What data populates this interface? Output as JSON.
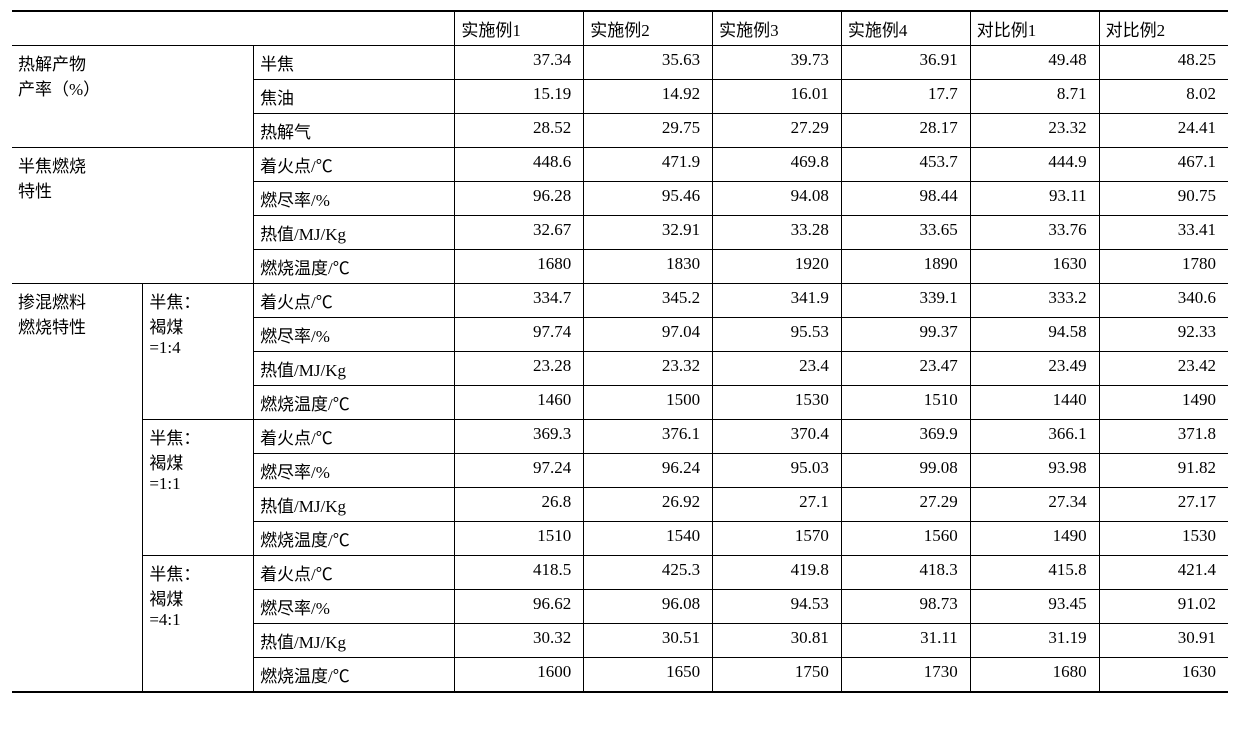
{
  "table": {
    "font_family": "Times New Roman / SimSun",
    "font_size_pt": 13,
    "text_color": "#000000",
    "background_color": "#ffffff",
    "rule_heavy_color": "#000000",
    "rule_thin_color": "#000000",
    "headers": {
      "c1": "实施例1",
      "c2": "实施例2",
      "c3": "实施例3",
      "c4": "实施例4",
      "c5": "对比例1",
      "c6": "对比例2"
    },
    "sections": {
      "s1": {
        "title_l1": "热解产物",
        "title_l2": "产率（%）",
        "rows": {
          "r1": {
            "label": "半焦",
            "v": [
              "37.34",
              "35.63",
              "39.73",
              "36.91",
              "49.48",
              "48.25"
            ]
          },
          "r2": {
            "label": "焦油",
            "v": [
              "15.19",
              "14.92",
              "16.01",
              "17.7",
              "8.71",
              "8.02"
            ]
          },
          "r3": {
            "label": "热解气",
            "v": [
              "28.52",
              "29.75",
              "27.29",
              "28.17",
              "23.32",
              "24.41"
            ]
          }
        }
      },
      "s2": {
        "title_l1": "半焦燃烧",
        "title_l2": "特性",
        "rows": {
          "r1": {
            "label": "着火点/℃",
            "v": [
              "448.6",
              "471.9",
              "469.8",
              "453.7",
              "444.9",
              "467.1"
            ]
          },
          "r2": {
            "label": "燃尽率/%",
            "v": [
              "96.28",
              "95.46",
              "94.08",
              "98.44",
              "93.11",
              "90.75"
            ]
          },
          "r3": {
            "label": "热值/MJ/Kg",
            "v": [
              "32.67",
              "32.91",
              "33.28",
              "33.65",
              "33.76",
              "33.41"
            ]
          },
          "r4": {
            "label": "燃烧温度/℃",
            "v": [
              "1680",
              "1830",
              "1920",
              "1890",
              "1630",
              "1780"
            ]
          }
        }
      },
      "s3": {
        "title_l1": "掺混燃料",
        "title_l2": "燃烧特性",
        "groups": {
          "g1": {
            "ratio_l1": "半焦：",
            "ratio_l2": "褐煤",
            "ratio_l3": "=1:4",
            "rows": {
              "r1": {
                "label": "着火点/℃",
                "v": [
                  "334.7",
                  "345.2",
                  "341.9",
                  "339.1",
                  "333.2",
                  "340.6"
                ]
              },
              "r2": {
                "label": "燃尽率/%",
                "v": [
                  "97.74",
                  "97.04",
                  "95.53",
                  "99.37",
                  "94.58",
                  "92.33"
                ]
              },
              "r3": {
                "label": "热值/MJ/Kg",
                "v": [
                  "23.28",
                  "23.32",
                  "23.4",
                  "23.47",
                  "23.49",
                  "23.42"
                ]
              },
              "r4": {
                "label": "燃烧温度/℃",
                "v": [
                  "1460",
                  "1500",
                  "1530",
                  "1510",
                  "1440",
                  "1490"
                ]
              }
            }
          },
          "g2": {
            "ratio_l1": "半焦：",
            "ratio_l2": "褐煤",
            "ratio_l3": "=1:1",
            "rows": {
              "r1": {
                "label": "着火点/℃",
                "v": [
                  "369.3",
                  "376.1",
                  "370.4",
                  "369.9",
                  "366.1",
                  "371.8"
                ]
              },
              "r2": {
                "label": "燃尽率/%",
                "v": [
                  "97.24",
                  "96.24",
                  "95.03",
                  "99.08",
                  "93.98",
                  "91.82"
                ]
              },
              "r3": {
                "label": "热值/MJ/Kg",
                "v": [
                  "26.8",
                  "26.92",
                  "27.1",
                  "27.29",
                  "27.34",
                  "27.17"
                ]
              },
              "r4": {
                "label": "燃烧温度/℃",
                "v": [
                  "1510",
                  "1540",
                  "1570",
                  "1560",
                  "1490",
                  "1530"
                ]
              }
            }
          },
          "g3": {
            "ratio_l1": "半焦：",
            "ratio_l2": "褐煤",
            "ratio_l3": "=4:1",
            "rows": {
              "r1": {
                "label": "着火点/℃",
                "v": [
                  "418.5",
                  "425.3",
                  "419.8",
                  "418.3",
                  "415.8",
                  "421.4"
                ]
              },
              "r2": {
                "label": "燃尽率/%",
                "v": [
                  "96.62",
                  "96.08",
                  "94.53",
                  "98.73",
                  "93.45",
                  "91.02"
                ]
              },
              "r3": {
                "label": "热值/MJ/Kg",
                "v": [
                  "30.32",
                  "30.51",
                  "30.81",
                  "31.11",
                  "31.19",
                  "30.91"
                ]
              },
              "r4": {
                "label": "燃烧温度/℃",
                "v": [
                  "1600",
                  "1650",
                  "1750",
                  "1730",
                  "1680",
                  "1630"
                ]
              }
            }
          }
        }
      }
    }
  }
}
